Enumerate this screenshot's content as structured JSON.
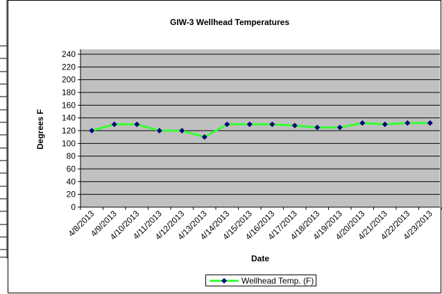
{
  "chart_data": {
    "type": "line",
    "title": "GIW-3 Wellhead Temperatures",
    "x_label": "Date",
    "y_label": "Degrees F",
    "categories": [
      "4/8/2013",
      "4/9/2013",
      "4/10/2013",
      "4/11/2013",
      "4/12/2013",
      "4/13/2013",
      "4/14/2013",
      "4/15/2013",
      "4/16/2013",
      "4/17/2013",
      "4/18/2013",
      "4/19/2013",
      "4/20/2013",
      "4/21/2013",
      "4/22/2013",
      "4/23/2013"
    ],
    "series": [
      {
        "name": "Wellhead Temp. (F)",
        "color": "#33ff33",
        "marker_color": "#000080",
        "values": [
          120,
          130,
          130,
          120,
          120,
          110,
          130,
          130,
          130,
          128,
          125,
          125,
          132,
          130,
          132,
          132
        ]
      }
    ],
    "ylim": [
      0,
      240
    ],
    "yticks": [
      0,
      20,
      40,
      60,
      80,
      100,
      120,
      140,
      160,
      180,
      200,
      220,
      240
    ],
    "grid": true,
    "legend": "bottom"
  }
}
